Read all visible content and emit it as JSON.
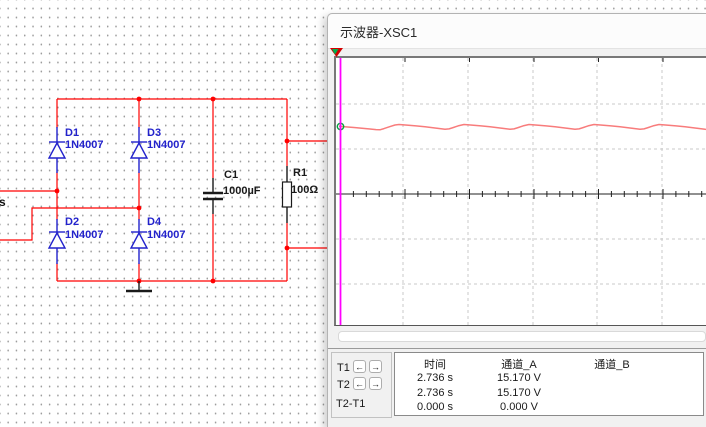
{
  "circuit": {
    "source_label": "s",
    "components": {
      "d1": {
        "ref": "D1",
        "part": "1N4007"
      },
      "d2": {
        "ref": "D2",
        "part": "1N4007"
      },
      "d3": {
        "ref": "D3",
        "part": "1N4007"
      },
      "d4": {
        "ref": "D4",
        "part": "1N4007"
      },
      "c1": {
        "ref": "C1",
        "value": "1000µF"
      },
      "r1": {
        "ref": "R1",
        "value": "100Ω"
      }
    },
    "colors": {
      "wire": "#ff0000",
      "component_blue": "#2222cc",
      "label_black": "#1a1a1a"
    }
  },
  "oscilloscope": {
    "title": "示波器-XSC1",
    "cursor_panel": {
      "t1_label": "T1",
      "t2_label": "T2",
      "t2t1_label": "T2-T1",
      "left_arrow": "←",
      "right_arrow": "→"
    },
    "readout": {
      "headers": [
        "时间",
        "通道_A",
        "通道_B"
      ],
      "rows": [
        {
          "time": "2.736 s",
          "channel_a": "15.170 V",
          "channel_b": ""
        },
        {
          "time": "2.736 s",
          "channel_a": "15.170 V",
          "channel_b": ""
        },
        {
          "time": "0.000 s",
          "channel_a": "0.000 V",
          "channel_b": ""
        }
      ]
    },
    "colors": {
      "trace": "#f87c7c",
      "cursor": "#ff00ff",
      "grid": "#c9c9c9",
      "marker": "#00a33d"
    },
    "waveform_points": [
      [
        3,
        68.3
      ],
      [
        10,
        68.9
      ],
      [
        18,
        69.5
      ],
      [
        26,
        70.2
      ],
      [
        34,
        71.0
      ],
      [
        40,
        71.6
      ],
      [
        44,
        71.8
      ],
      [
        48,
        70.6
      ],
      [
        54,
        68.6
      ],
      [
        59,
        67.0
      ],
      [
        63,
        66.5
      ],
      [
        71,
        67.1
      ],
      [
        80,
        67.9
      ],
      [
        89,
        68.8
      ],
      [
        97,
        69.7
      ],
      [
        104,
        70.6
      ],
      [
        109,
        71.3
      ],
      [
        113,
        70.9
      ],
      [
        117,
        69.6
      ],
      [
        122,
        67.9
      ],
      [
        128,
        66.5
      ],
      [
        136,
        67.1
      ],
      [
        145,
        67.9
      ],
      [
        154,
        68.8
      ],
      [
        162,
        69.7
      ],
      [
        169,
        70.6
      ],
      [
        174,
        71.3
      ],
      [
        178,
        70.9
      ],
      [
        182,
        69.6
      ],
      [
        187,
        67.9
      ],
      [
        193,
        66.5
      ],
      [
        201,
        67.1
      ],
      [
        210,
        67.9
      ],
      [
        219,
        68.8
      ],
      [
        227,
        69.7
      ],
      [
        234,
        70.6
      ],
      [
        239,
        71.3
      ],
      [
        243,
        70.9
      ],
      [
        247,
        69.6
      ],
      [
        252,
        67.9
      ],
      [
        258,
        66.5
      ],
      [
        266,
        67.1
      ],
      [
        275,
        67.9
      ],
      [
        284,
        68.8
      ],
      [
        292,
        69.7
      ],
      [
        299,
        70.6
      ],
      [
        304,
        71.3
      ],
      [
        308,
        70.9
      ],
      [
        312,
        69.6
      ],
      [
        317,
        67.9
      ],
      [
        323,
        66.5
      ],
      [
        331,
        67.1
      ],
      [
        340,
        67.9
      ],
      [
        349,
        68.8
      ],
      [
        357,
        69.7
      ],
      [
        364,
        70.6
      ],
      [
        369,
        71.3
      ],
      [
        371,
        71.5
      ]
    ]
  }
}
